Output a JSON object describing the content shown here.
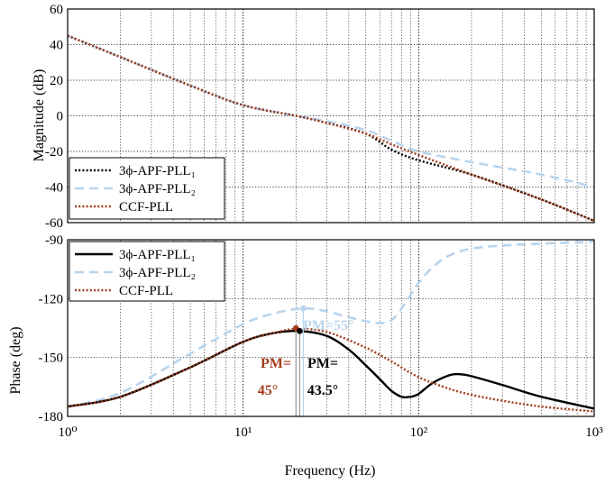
{
  "chart_data": [
    {
      "type": "line",
      "ylabel": "Magnitude (dB)",
      "xscale": "log",
      "xlim": [
        1,
        1000
      ],
      "ylim": [
        -60,
        60
      ],
      "yticks": [
        "60",
        "40",
        "20",
        "0",
        "-20",
        "-40",
        "-60"
      ],
      "grid": true,
      "legend_position": "bottom-left",
      "series": [
        {
          "name": "3ϕ-APF-PLL₁",
          "color": "#000000",
          "style": "dotted",
          "x": [
            1,
            2,
            5,
            10,
            20,
            30,
            50,
            70,
            100,
            200,
            500,
            1000
          ],
          "values": [
            45,
            33,
            17,
            6,
            0,
            -4,
            -10,
            -19,
            -25,
            -33,
            -47,
            -59
          ]
        },
        {
          "name": "3ϕ-APF-PLL₂",
          "color": "#b8d4ec",
          "style": "dashed",
          "x": [
            1,
            2,
            5,
            10,
            20,
            30,
            50,
            70,
            100,
            200,
            500,
            1000
          ],
          "values": [
            45,
            33,
            17,
            6,
            0,
            -3,
            -8,
            -14,
            -20,
            -26,
            -33,
            -40
          ]
        },
        {
          "name": "CCF-PLL",
          "color": "#a23b1c",
          "style": "dotted",
          "x": [
            1,
            2,
            5,
            10,
            20,
            30,
            50,
            70,
            100,
            200,
            500,
            1000
          ],
          "values": [
            45,
            33,
            17,
            6,
            0,
            -4,
            -10,
            -16,
            -22,
            -33,
            -47,
            -59
          ]
        }
      ]
    },
    {
      "type": "line",
      "ylabel": "Phase (deg)",
      "xlabel": "Frequency  (Hz)",
      "xscale": "log",
      "xlim": [
        1,
        1000
      ],
      "ylim": [
        -180,
        -90
      ],
      "yticks": [
        "-90",
        "-120",
        "-150",
        "-180"
      ],
      "xticks": [
        "10⁰",
        "10¹",
        "10²",
        "10³"
      ],
      "grid": true,
      "legend_position": "top-left",
      "series": [
        {
          "name": "3ϕ-APF-PLL₁",
          "color": "#000000",
          "style": "solid",
          "x": [
            1,
            2,
            5,
            10,
            15,
            21,
            30,
            40,
            50,
            60,
            70,
            80,
            90,
            100,
            120,
            150,
            170,
            200,
            300,
            500,
            1000
          ],
          "values": [
            -175,
            -170,
            -155,
            -142,
            -137.5,
            -136.5,
            -139,
            -146,
            -154,
            -161,
            -167,
            -170,
            -170,
            -168.5,
            -163,
            -159,
            -158.5,
            -159.5,
            -164,
            -170,
            -176
          ]
        },
        {
          "name": "3ϕ-APF-PLL₂",
          "color": "#b8d4ec",
          "style": "dashed",
          "x": [
            1,
            2,
            5,
            10,
            15,
            22,
            30,
            40,
            50,
            60,
            70,
            80,
            90,
            100,
            120,
            150,
            200,
            300,
            500,
            1000
          ],
          "values": [
            -175,
            -168,
            -148,
            -133,
            -127.5,
            -125,
            -126.5,
            -129.5,
            -131.5,
            -132.5,
            -131,
            -125,
            -118,
            -112,
            -104,
            -98,
            -94.5,
            -93,
            -92,
            -91
          ]
        },
        {
          "name": "CCF-PLL",
          "color": "#a23b1c",
          "style": "dotted",
          "x": [
            1,
            2,
            5,
            10,
            15,
            20,
            30,
            50,
            70,
            100,
            150,
            200,
            300,
            500,
            1000
          ],
          "values": [
            -175,
            -170,
            -155,
            -142,
            -137.5,
            -135.5,
            -137,
            -145,
            -152,
            -160,
            -166,
            -169,
            -172,
            -175,
            -177.5
          ]
        }
      ],
      "annotations": [
        {
          "label_line1": "PM=",
          "label_line2": "45°",
          "color": "#a23b1c",
          "x": 20,
          "y": -135
        },
        {
          "label_line1": "PM=",
          "label_line2": "43.5°",
          "color": "#000000",
          "x": 21,
          "y": -136.5
        },
        {
          "label_line1": "PM=55°",
          "color": "#b8d4ec",
          "x": 22,
          "y": -125
        }
      ]
    }
  ]
}
